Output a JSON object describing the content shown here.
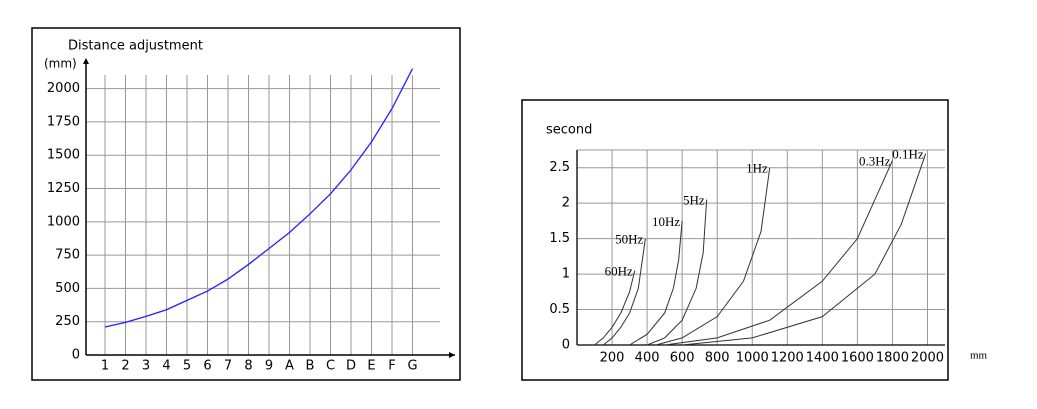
{
  "chart_data": [
    {
      "type": "line",
      "title": "Distance adjustment",
      "y_label": "(mm)",
      "categories": [
        "1",
        "2",
        "3",
        "4",
        "5",
        "6",
        "7",
        "8",
        "9",
        "A",
        "B",
        "C",
        "D",
        "E",
        "F",
        "G"
      ],
      "values": [
        210,
        245,
        290,
        340,
        410,
        480,
        570,
        680,
        800,
        920,
        1060,
        1210,
        1390,
        1600,
        1850,
        2150
      ],
      "color": "#1f1fff",
      "ylim": [
        0,
        2200
      ],
      "yticks": [
        0,
        250,
        500,
        750,
        1000,
        1250,
        1500,
        1750,
        2000
      ],
      "grid": true
    },
    {
      "type": "line",
      "y_label": "second",
      "x_label": "mm",
      "xlim": [
        0,
        2100
      ],
      "xticks": [
        200,
        400,
        600,
        800,
        1000,
        1200,
        1400,
        1600,
        1800,
        2000
      ],
      "ylim": [
        0,
        2.75
      ],
      "yticks": [
        0,
        0.5,
        1,
        1.5,
        2,
        2.5
      ],
      "grid": true,
      "series": [
        {
          "name": "60Hz",
          "color": "#333333",
          "x": [
            100,
            150,
            200,
            250,
            300,
            330
          ],
          "values": [
            0,
            0.1,
            0.25,
            0.45,
            0.75,
            1.05
          ]
        },
        {
          "name": "50Hz",
          "color": "#333333",
          "x": [
            150,
            200,
            250,
            300,
            350,
            390
          ],
          "values": [
            0,
            0.1,
            0.25,
            0.45,
            0.8,
            1.5
          ]
        },
        {
          "name": "10Hz",
          "color": "#333333",
          "x": [
            300,
            400,
            500,
            550,
            580,
            600
          ],
          "values": [
            0,
            0.15,
            0.45,
            0.8,
            1.2,
            1.75
          ]
        },
        {
          "name": "5Hz",
          "color": "#333333",
          "x": [
            400,
            500,
            600,
            680,
            720,
            740
          ],
          "values": [
            0,
            0.1,
            0.35,
            0.8,
            1.3,
            2.05
          ]
        },
        {
          "name": "1Hz",
          "color": "#333333",
          "x": [
            450,
            600,
            800,
            950,
            1050,
            1100
          ],
          "values": [
            0,
            0.1,
            0.4,
            0.9,
            1.6,
            2.5
          ]
        },
        {
          "name": "0.3Hz",
          "color": "#333333",
          "x": [
            500,
            800,
            1100,
            1400,
            1600,
            1800
          ],
          "values": [
            0,
            0.1,
            0.35,
            0.9,
            1.5,
            2.6
          ]
        },
        {
          "name": "0.1Hz",
          "color": "#333333",
          "x": [
            600,
            1000,
            1400,
            1700,
            1850,
            1990
          ],
          "values": [
            0,
            0.1,
            0.4,
            1.0,
            1.7,
            2.7
          ]
        }
      ]
    }
  ]
}
